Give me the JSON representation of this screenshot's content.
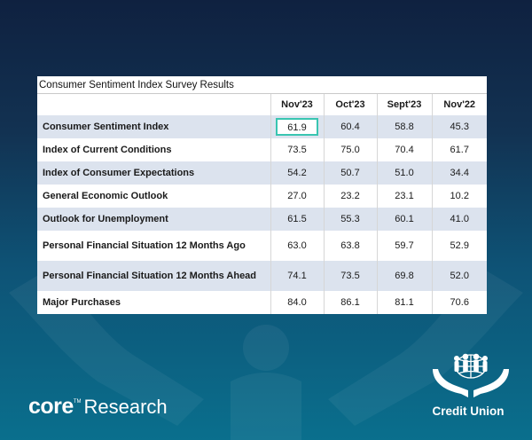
{
  "title": "Consumer Sentiment Index Survey Results",
  "columns": [
    "Nov'23",
    "Oct'23",
    "Sept'23",
    "Nov'22"
  ],
  "rows": [
    {
      "label": "Consumer Sentiment Index",
      "values": [
        "61.9",
        "60.4",
        "58.8",
        "45.3"
      ]
    },
    {
      "label": "Index of Current Conditions",
      "values": [
        "73.5",
        "75.0",
        "70.4",
        "61.7"
      ]
    },
    {
      "label": "Index of Consumer Expectations",
      "values": [
        "54.2",
        "50.7",
        "51.0",
        "34.4"
      ]
    },
    {
      "label": "General Economic Outlook",
      "values": [
        "27.0",
        "23.2",
        "23.1",
        "10.2"
      ]
    },
    {
      "label": "Outlook for Unemployment",
      "values": [
        "61.5",
        "55.3",
        "60.1",
        "41.0"
      ]
    },
    {
      "label": "Personal Financial Situation 12 Months Ago",
      "values": [
        "63.0",
        "63.8",
        "59.7",
        "52.9"
      ]
    },
    {
      "label": "Personal Financial Situation 12 Months Ahead",
      "values": [
        "74.1",
        "73.5",
        "69.8",
        "52.0"
      ]
    },
    {
      "label": "Major Purchases",
      "values": [
        "84.0",
        "86.1",
        "81.1",
        "70.6"
      ]
    }
  ],
  "brand": {
    "core": "core",
    "tm": "TM",
    "research": "Research"
  },
  "credit_union": "Credit Union",
  "colors": {
    "highlight": "#39c5b1",
    "row_band": "#dce3ee"
  },
  "icons": [
    "hands-background-icon",
    "credit-union-logo-icon"
  ]
}
